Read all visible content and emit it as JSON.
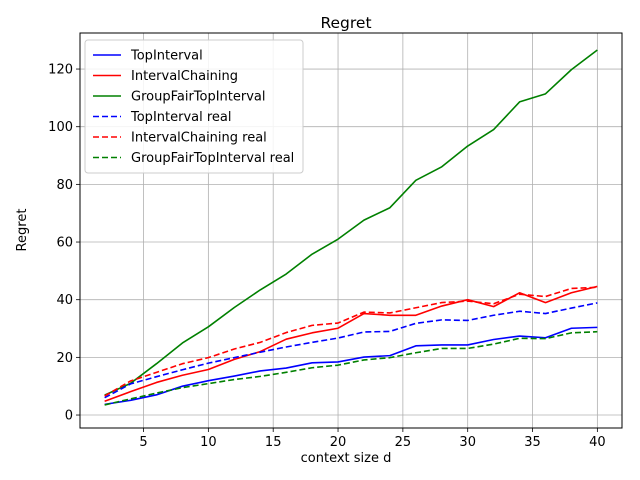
{
  "chart_data": {
    "type": "line",
    "title": "Regret",
    "xlabel": "context size d",
    "ylabel": "Regret",
    "xlim": [
      0.1,
      41.9
    ],
    "ylim": [
      -4.5,
      132.5
    ],
    "xticks": [
      5,
      10,
      15,
      20,
      25,
      30,
      35,
      40
    ],
    "yticks": [
      0,
      20,
      40,
      60,
      80,
      100,
      120
    ],
    "grid": true,
    "legend_position": "top-left",
    "x": [
      2,
      4,
      6,
      8,
      10,
      12,
      14,
      16,
      18,
      20,
      22,
      24,
      26,
      28,
      30,
      32,
      34,
      36,
      38,
      40
    ],
    "series": [
      {
        "name": "TopInterval",
        "color": "#0000ff",
        "dash": "solid",
        "values": [
          3.7,
          5.1,
          7.0,
          10.0,
          11.9,
          13.5,
          15.3,
          16.3,
          18.1,
          18.4,
          20.1,
          20.6,
          24.0,
          24.3,
          24.3,
          26.2,
          27.4,
          26.8,
          30.1,
          30.4
        ]
      },
      {
        "name": "IntervalChaining",
        "color": "#ff0000",
        "dash": "solid",
        "values": [
          4.8,
          8.1,
          11.3,
          13.8,
          15.8,
          19.3,
          22.0,
          26.3,
          28.5,
          30.1,
          35.2,
          34.6,
          34.6,
          37.8,
          40.0,
          37.6,
          42.4,
          39.0,
          42.4,
          44.6
        ]
      },
      {
        "name": "GroupFairTopInterval",
        "color": "#008000",
        "dash": "solid",
        "values": [
          6.9,
          11.0,
          17.8,
          25.0,
          30.6,
          37.3,
          43.4,
          48.9,
          55.8,
          61.0,
          67.6,
          71.9,
          81.4,
          86.1,
          93.3,
          99.0,
          108.6,
          111.4,
          119.8,
          126.6
        ]
      },
      {
        "name": "TopInterval real",
        "color": "#0000ff",
        "dash": "dashed",
        "values": [
          6.0,
          10.8,
          13.3,
          15.7,
          18.0,
          19.9,
          21.8,
          23.6,
          25.2,
          26.7,
          28.8,
          29.0,
          31.8,
          33.0,
          32.8,
          34.6,
          36.0,
          35.2,
          37.1,
          38.9
        ]
      },
      {
        "name": "IntervalChaining real",
        "color": "#ff0000",
        "dash": "dashed",
        "values": [
          6.6,
          11.8,
          14.8,
          17.8,
          19.9,
          22.9,
          25.2,
          28.6,
          31.1,
          31.9,
          35.7,
          35.4,
          37.2,
          39.0,
          39.5,
          38.6,
          41.9,
          41.1,
          43.9,
          44.3
        ]
      },
      {
        "name": "GroupFairTopInterval real",
        "color": "#008000",
        "dash": "dashed",
        "values": [
          3.5,
          5.6,
          7.6,
          9.5,
          10.9,
          12.3,
          13.4,
          14.8,
          16.4,
          17.3,
          19.1,
          19.9,
          21.6,
          23.1,
          23.1,
          24.6,
          26.6,
          26.5,
          28.5,
          28.9
        ]
      }
    ]
  }
}
